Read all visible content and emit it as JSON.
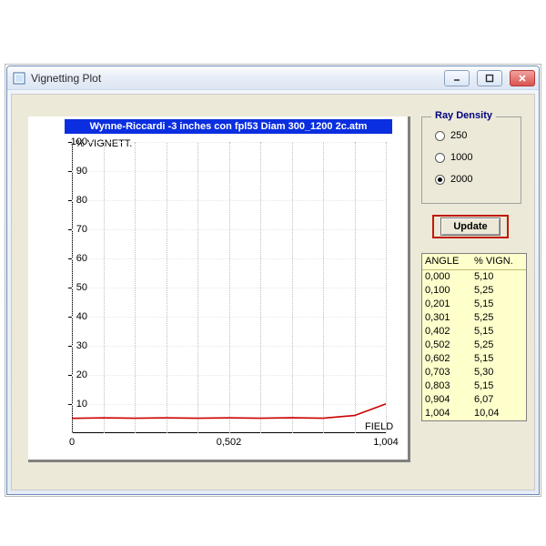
{
  "window": {
    "title": "Vignetting Plot",
    "icon_name": "app-icon",
    "buttons": {
      "min": "—",
      "max": "□",
      "close": "X"
    }
  },
  "chart": {
    "type": "line",
    "title": "Wynne-Riccardi -3 inches con fpl53  Diam 300_1200 2c.atm",
    "title_bg": "#0a2ee0",
    "title_color": "#ffffff",
    "title_fontsize": 11,
    "ylabel": "% VIGNETT.",
    "xlabel": "FIELD",
    "label_fontsize": 11,
    "xlim": [
      0,
      1.004
    ],
    "ylim": [
      0,
      100
    ],
    "xticks": [
      "0",
      "0,502",
      "1,004"
    ],
    "xtick_positions": [
      0,
      0.502,
      1.004
    ],
    "yticks": [
      10,
      20,
      30,
      40,
      50,
      60,
      70,
      80,
      90,
      100
    ],
    "grid_color": "#bfbfbf",
    "grid_on": true,
    "grid_x_positions": [
      0,
      0.1004,
      0.2008,
      0.3012,
      0.4016,
      0.502,
      0.6024,
      0.7028,
      0.8032,
      0.9036,
      1.004
    ],
    "background_color": "#ffffff",
    "axis_color": "#000000",
    "panel_shadow_color": "#808080",
    "series": {
      "color": "#cc0000",
      "width": 1.6,
      "x": [
        0.0,
        0.1,
        0.201,
        0.301,
        0.402,
        0.502,
        0.602,
        0.703,
        0.803,
        0.904,
        1.004
      ],
      "y": [
        5.1,
        5.25,
        5.15,
        5.25,
        5.15,
        5.25,
        5.15,
        5.3,
        5.15,
        6.07,
        10.04
      ]
    }
  },
  "ray_density": {
    "legend": "Ray Density",
    "legend_color": "#000080",
    "options": [
      "250",
      "1000",
      "2000"
    ],
    "selected_index": 2
  },
  "update_button": {
    "label": "Update",
    "highlight_border": "#c21807"
  },
  "table": {
    "background": "#ffffcc",
    "border": "#808080",
    "columns": [
      "ANGLE",
      "% VIGN."
    ],
    "rows": [
      [
        "0,000",
        "5,10"
      ],
      [
        "0,100",
        "5,25"
      ],
      [
        "0,201",
        "5,15"
      ],
      [
        "0,301",
        "5,25"
      ],
      [
        "0,402",
        "5,15"
      ],
      [
        "0,502",
        "5,25"
      ],
      [
        "0,602",
        "5,15"
      ],
      [
        "0,703",
        "5,30"
      ],
      [
        "0,803",
        "5,15"
      ],
      [
        "0,904",
        "6,07"
      ],
      [
        "1,004",
        "10,04"
      ]
    ]
  },
  "client_bg": "#ece9d8"
}
